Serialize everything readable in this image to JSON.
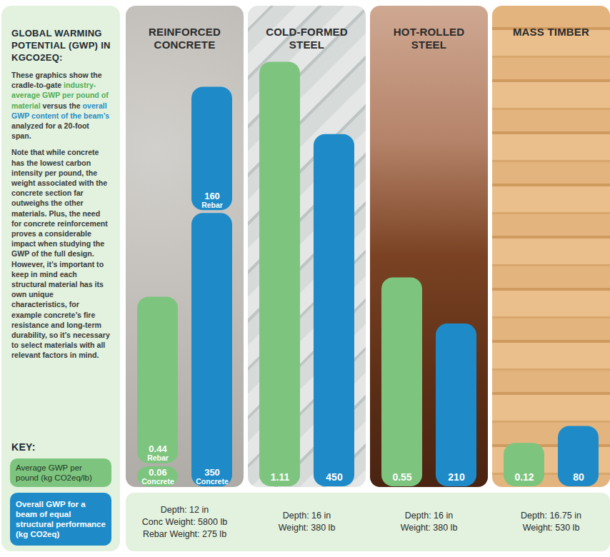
{
  "chart_data": {
    "type": "bar",
    "categories": [
      "REINFORCED CONCRETE",
      "COLD-FORMED STEEL",
      "HOT-ROLLED STEEL",
      "MASS TIMBER"
    ],
    "stacked": true,
    "data_labels": true,
    "tick_labels": false,
    "ylim": [
      0,
      1.25
    ],
    "y2lim": [
      0,
      610
    ],
    "series": [
      {
        "axis": "y",
        "color": "#7dc57f",
        "values": [
          0.06,
          1.11,
          0.55,
          0.12
        ],
        "segment_labels": [
          "Concrete",
          null,
          null,
          null
        ]
      },
      {
        "axis": "y",
        "color": "#7dc57f",
        "values": [
          0.44,
          null,
          null,
          null
        ],
        "segment_labels": [
          "Rebar",
          null,
          null,
          null
        ]
      },
      {
        "axis": "y2",
        "color": "#1e8bc8",
        "values": [
          350,
          450,
          210,
          80
        ],
        "segment_labels": [
          "Concrete",
          null,
          null,
          null
        ]
      },
      {
        "axis": "y2",
        "color": "#1e8bc8",
        "values": [
          160,
          null,
          null,
          null
        ],
        "segment_labels": [
          "Rebar",
          null,
          null,
          null
        ]
      }
    ]
  },
  "sidebar": {
    "title": "GLOBAL WARMING POTENTIAL (GWP) IN KGCO2EQ:",
    "intro": [
      {
        "text": "These graphics show the cradle-to-gate "
      },
      {
        "text": "industry-average GWP per pound of material",
        "color": "#4fae57"
      },
      {
        "text": " versus the "
      },
      {
        "text": "overall GWP content of the beam’s",
        "color": "#2a8cc6"
      },
      {
        "text": " analyzed for a 20-foot span."
      }
    ],
    "note": "Note that while concrete has the lowest carbon intensity per pound, the weight associated with the concrete section far outweighs the other materials. Plus, the need for concrete reinforcement proves a considerable impact when studying the GWP of the full design. However, it’s important to keep in mind each structural material has its own unique characteristics, for example concrete’s fire resistance and long-term durability, so it’s necessary to select materials with all relevant factors in mind.",
    "key_title": "KEY:",
    "key": [
      {
        "label": "Average GWP per pound (kg CO2eq/lb)",
        "color": "#7dc57f"
      },
      {
        "label": "Overall GWP for a beam of equal structural performance (kg CO2eq)",
        "color": "#1e8bc8"
      }
    ]
  },
  "footer": [
    [
      "Depth: 12 in",
      "Conc Weight: 5800 lb",
      "Rebar Weight: 275 lb"
    ],
    [
      "Depth: 16 in",
      "Weight: 380 lb"
    ],
    [
      "Depth: 16 in",
      "Weight: 380 lb"
    ],
    [
      "Depth: 16.75 in",
      "Weight: 530 lb"
    ]
  ]
}
